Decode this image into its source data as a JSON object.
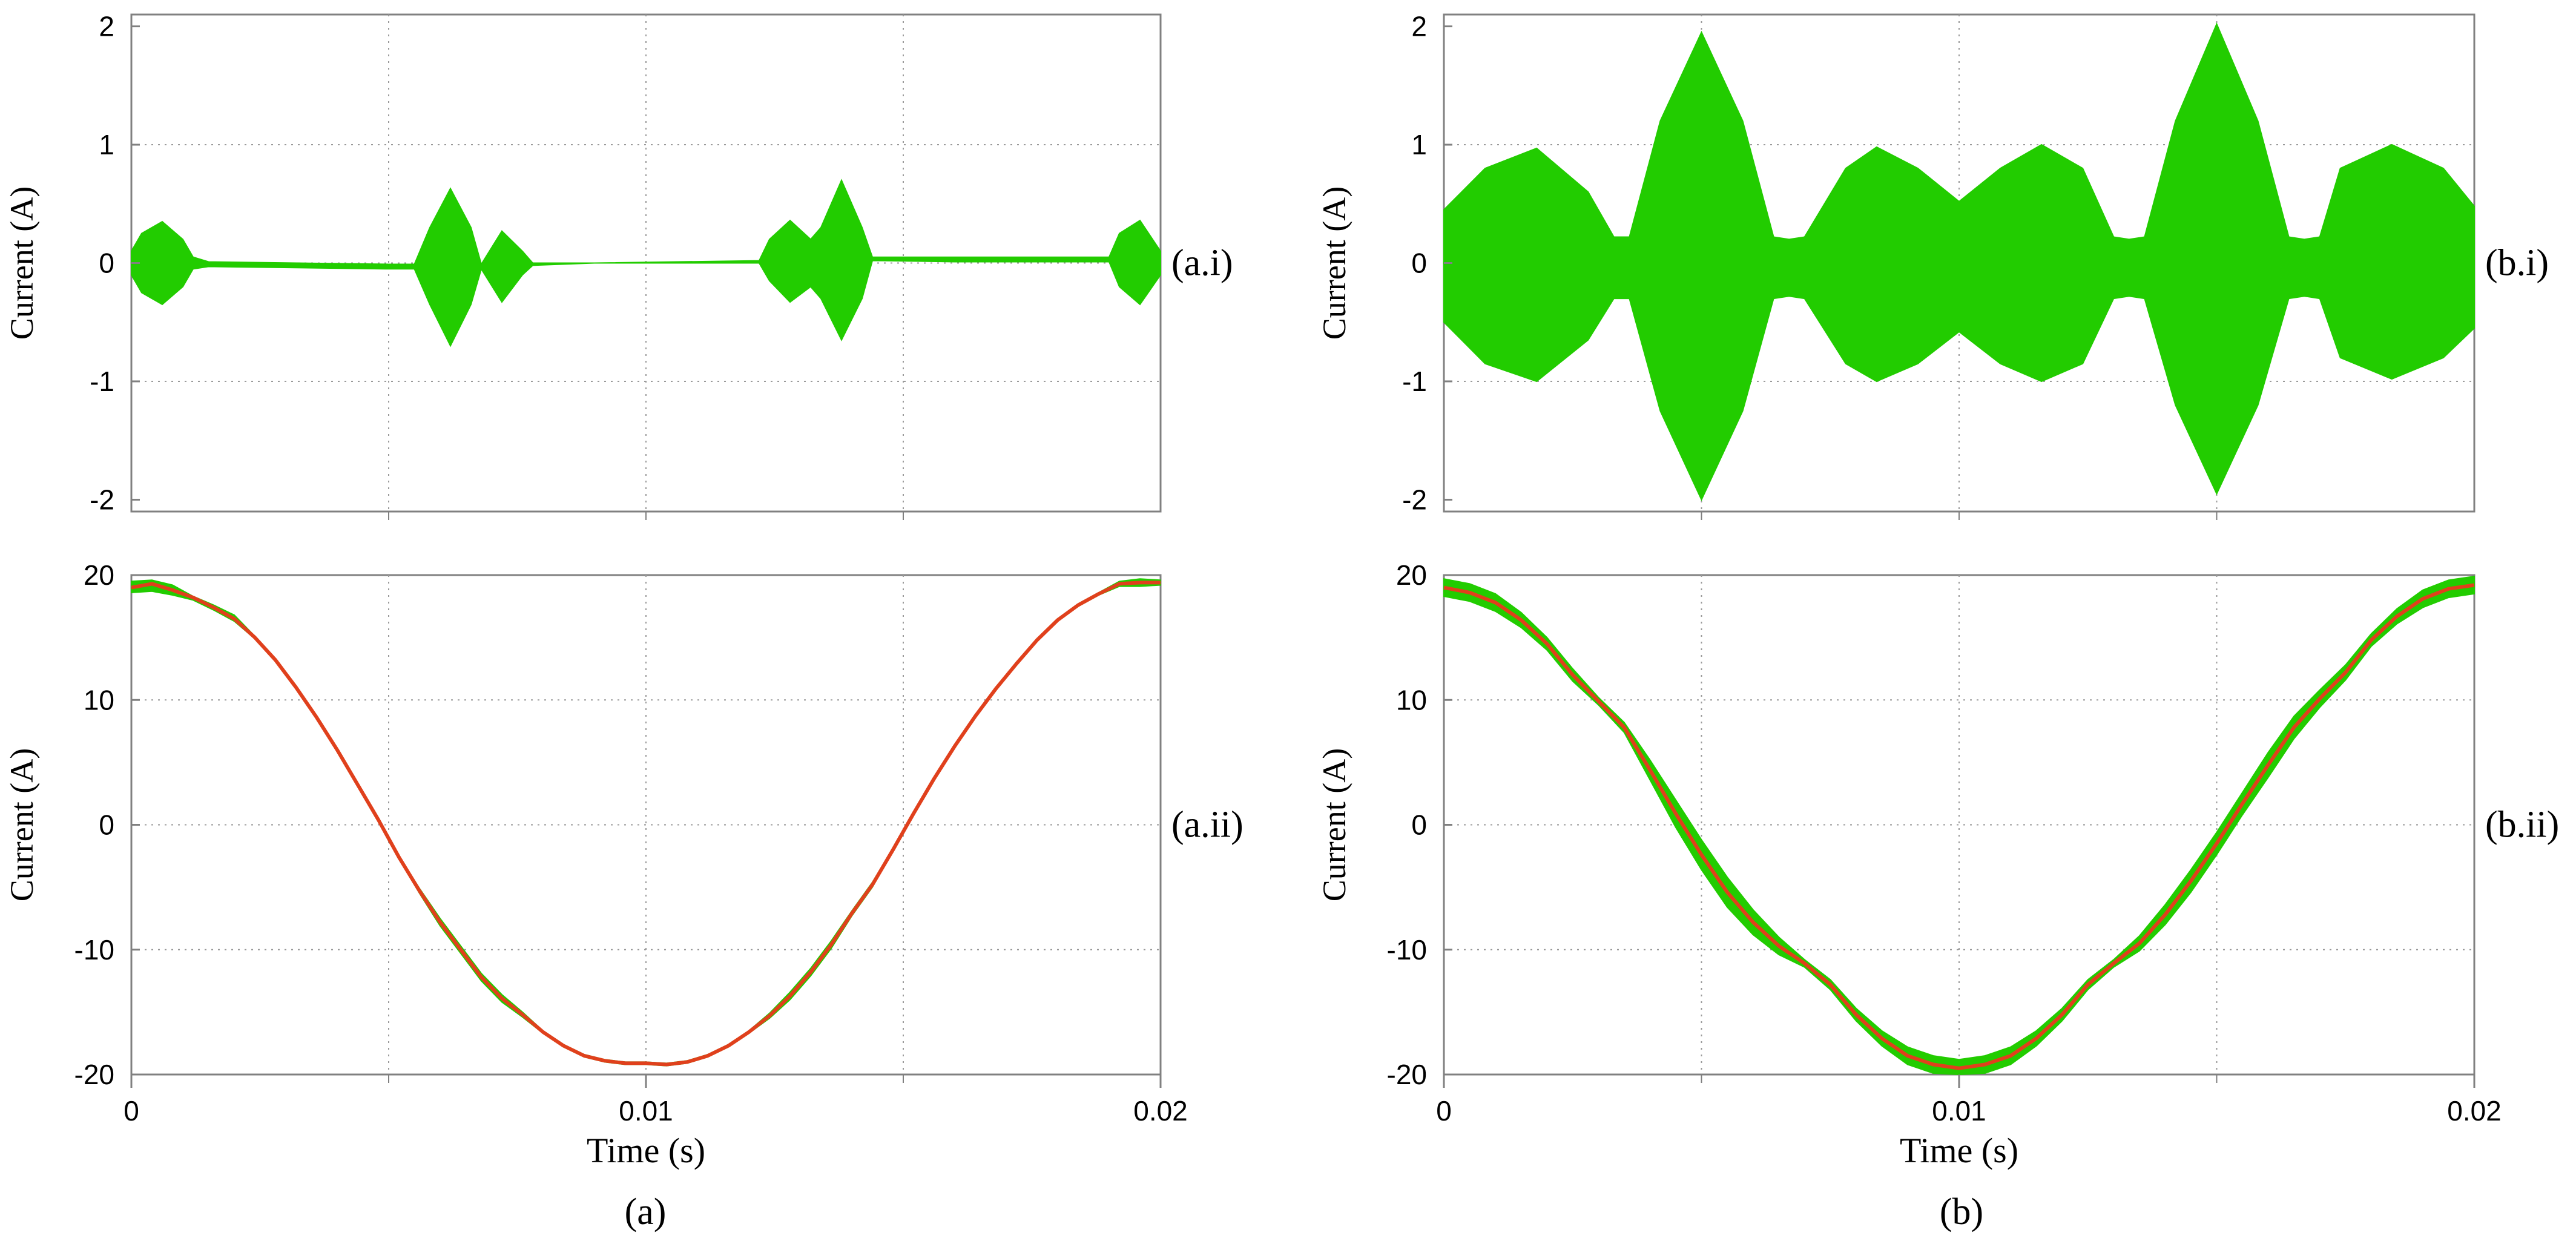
{
  "colors": {
    "ripple": "#22cc00",
    "fundamental": "#e0401c",
    "grid": "#9a9a9a",
    "axis": "#808080"
  },
  "captions": [
    "(a)",
    "(b)"
  ],
  "chart_data": [
    {
      "id": "a-i",
      "type": "area",
      "panel_label": "(a.i)",
      "ylabel": "Current (A)",
      "xlabel": "",
      "xlim": [
        0,
        0.02
      ],
      "ylim": [
        -2.1,
        2.1
      ],
      "xticks": [],
      "yticks": [
        "2",
        "1",
        "0",
        "-1",
        "-2"
      ],
      "ytick_values": [
        2,
        1,
        0,
        -1,
        -2
      ],
      "xgrid": [
        0.005,
        0.01,
        0.015
      ],
      "ygrid": [
        1,
        0,
        -1
      ],
      "series": [
        {
          "kind": "band",
          "color": "ripple",
          "x": [
            0,
            0.0002,
            0.0006,
            0.001,
            0.0012,
            0.0015,
            0.005,
            0.0055,
            0.0058,
            0.0062,
            0.0066,
            0.0068,
            0.0072,
            0.0076,
            0.0078,
            0.009,
            0.0122,
            0.0124,
            0.0128,
            0.0132,
            0.0134,
            0.0138,
            0.0142,
            0.0144,
            0.0146,
            0.016,
            0.019,
            0.0192,
            0.0196,
            0.02
          ],
          "upper": [
            0.1,
            0.25,
            0.35,
            0.2,
            0.05,
            0.01,
            -0.01,
            -0.01,
            0.3,
            0.63,
            0.3,
            -0.01,
            0.27,
            0.1,
            0.0,
            0.0,
            0.02,
            0.2,
            0.36,
            0.2,
            0.3,
            0.7,
            0.3,
            0.05,
            0.05,
            0.05,
            0.05,
            0.25,
            0.36,
            0.1
          ],
          "lower": [
            -0.1,
            -0.25,
            -0.35,
            -0.2,
            -0.05,
            -0.03,
            -0.05,
            -0.05,
            -0.35,
            -0.7,
            -0.35,
            -0.05,
            -0.33,
            -0.1,
            -0.02,
            0.0,
            0.0,
            -0.15,
            -0.33,
            -0.2,
            -0.3,
            -0.65,
            -0.3,
            0.02,
            0.02,
            0.01,
            0.01,
            -0.2,
            -0.35,
            -0.1
          ]
        }
      ]
    },
    {
      "id": "b-i",
      "type": "area",
      "panel_label": "(b.i)",
      "ylabel": "Current (A)",
      "xlabel": "",
      "xlim": [
        0,
        0.02
      ],
      "ylim": [
        -2.1,
        2.1
      ],
      "xticks": [],
      "yticks": [
        "2",
        "1",
        "0",
        "-1",
        "-2"
      ],
      "ytick_values": [
        2,
        1,
        0,
        -1,
        -2
      ],
      "xgrid": [
        0.005,
        0.01,
        0.015
      ],
      "ygrid": [
        1,
        0,
        -1
      ],
      "series": [
        {
          "kind": "band",
          "color": "ripple",
          "x": [
            0,
            0.0008,
            0.0018,
            0.0028,
            0.0033,
            0.0036,
            0.0042,
            0.005,
            0.0058,
            0.0064,
            0.0067,
            0.007,
            0.0078,
            0.0084,
            0.0092,
            0.01,
            0.0108,
            0.0116,
            0.0124,
            0.013,
            0.0133,
            0.0136,
            0.0142,
            0.015,
            0.0158,
            0.0164,
            0.0167,
            0.017,
            0.0174,
            0.0184,
            0.0194,
            0.02
          ],
          "upper": [
            0.45,
            0.8,
            0.97,
            0.6,
            0.22,
            0.22,
            1.2,
            1.95,
            1.2,
            0.22,
            0.2,
            0.22,
            0.8,
            0.98,
            0.8,
            0.52,
            0.8,
            1.0,
            0.8,
            0.22,
            0.2,
            0.22,
            1.2,
            2.02,
            1.2,
            0.22,
            0.2,
            0.22,
            0.8,
            1.0,
            0.8,
            0.48
          ],
          "lower": [
            -0.5,
            -0.85,
            -1.0,
            -0.65,
            -0.3,
            -0.3,
            -1.25,
            -2.0,
            -1.25,
            -0.3,
            -0.28,
            -0.3,
            -0.85,
            -1.0,
            -0.85,
            -0.58,
            -0.85,
            -1.0,
            -0.85,
            -0.3,
            -0.28,
            -0.3,
            -1.2,
            -1.95,
            -1.2,
            -0.3,
            -0.28,
            -0.3,
            -0.8,
            -0.98,
            -0.8,
            -0.55
          ]
        }
      ]
    },
    {
      "id": "a-ii",
      "type": "line",
      "panel_label": "(a.ii)",
      "ylabel": "Current (A)",
      "xlabel": "Time (s)",
      "xlim": [
        0,
        0.02
      ],
      "ylim": [
        -20,
        20
      ],
      "xticks": [
        "0",
        "0.01",
        "0.02"
      ],
      "xtick_values": [
        0,
        0.01,
        0.02
      ],
      "yticks": [
        "20",
        "10",
        "0",
        "-10",
        "-20"
      ],
      "ytick_values": [
        20,
        10,
        0,
        -10,
        -20
      ],
      "xgrid": [
        0.005,
        0.01,
        0.015
      ],
      "ygrid": [
        10,
        0,
        -10
      ],
      "series": [
        {
          "kind": "band",
          "color": "ripple",
          "x": [
            0,
            0.0004,
            0.0008,
            0.0012,
            0.0016,
            0.002,
            0.0024,
            0.0028,
            0.0032,
            0.0036,
            0.004,
            0.0044,
            0.0048,
            0.0052,
            0.0056,
            0.006,
            0.0064,
            0.0068,
            0.0072,
            0.0076,
            0.008,
            0.0084,
            0.0088,
            0.0092,
            0.0096,
            0.01,
            0.0104,
            0.0108,
            0.0112,
            0.0116,
            0.012,
            0.0124,
            0.0128,
            0.0132,
            0.0136,
            0.014,
            0.0144,
            0.0148,
            0.0152,
            0.0156,
            0.016,
            0.0164,
            0.0168,
            0.0172,
            0.0176,
            0.018,
            0.0184,
            0.0188,
            0.0192,
            0.0196,
            0.02
          ],
          "upper": [
            19.5,
            19.6,
            19.2,
            18.3,
            17.6,
            16.8,
            15.1,
            13.3,
            11.1,
            8.7,
            6.1,
            3.3,
            0.5,
            -2.5,
            -5.1,
            -7.5,
            -9.7,
            -11.9,
            -13.6,
            -15.0,
            -16.5,
            -17.6,
            -18.4,
            -18.8,
            -19.0,
            -19.0,
            -19.1,
            -18.9,
            -18.4,
            -17.6,
            -16.5,
            -15.1,
            -13.4,
            -11.5,
            -9.3,
            -6.9,
            -4.6,
            -1.9,
            1.0,
            3.8,
            6.4,
            8.8,
            11.0,
            13.0,
            14.9,
            16.5,
            17.7,
            18.6,
            19.5,
            19.7,
            19.6
          ],
          "lower": [
            18.6,
            18.7,
            18.4,
            18.0,
            17.2,
            16.3,
            14.9,
            13.1,
            10.9,
            8.5,
            5.9,
            3.1,
            0.3,
            -2.7,
            -5.5,
            -8.1,
            -10.3,
            -12.5,
            -14.2,
            -15.4,
            -16.7,
            -17.8,
            -18.6,
            -19.0,
            -19.2,
            -19.2,
            -19.3,
            -19.1,
            -18.6,
            -17.8,
            -16.7,
            -15.5,
            -14.0,
            -12.1,
            -9.9,
            -7.3,
            -5.0,
            -2.1,
            0.8,
            3.6,
            6.2,
            8.6,
            10.8,
            12.8,
            14.7,
            16.3,
            17.5,
            18.4,
            19.1,
            19.1,
            19.2
          ]
        },
        {
          "kind": "line",
          "color": "fundamental",
          "x": [
            0,
            0.0004,
            0.0008,
            0.0012,
            0.0016,
            0.002,
            0.0024,
            0.0028,
            0.0032,
            0.0036,
            0.004,
            0.0044,
            0.0048,
            0.0052,
            0.0056,
            0.006,
            0.0064,
            0.0068,
            0.0072,
            0.0076,
            0.008,
            0.0084,
            0.0088,
            0.0092,
            0.0096,
            0.01,
            0.0104,
            0.0108,
            0.0112,
            0.0116,
            0.012,
            0.0124,
            0.0128,
            0.0132,
            0.0136,
            0.014,
            0.0144,
            0.0148,
            0.0152,
            0.0156,
            0.016,
            0.0164,
            0.0168,
            0.0172,
            0.0176,
            0.018,
            0.0184,
            0.0188,
            0.0192,
            0.0196,
            0.02
          ],
          "y": [
            19.0,
            19.3,
            18.8,
            18.2,
            17.4,
            16.5,
            15.0,
            13.2,
            11.0,
            8.6,
            6.0,
            3.2,
            0.4,
            -2.6,
            -5.3,
            -7.8,
            -10.0,
            -12.2,
            -13.9,
            -15.2,
            -16.6,
            -17.7,
            -18.5,
            -18.9,
            -19.1,
            -19.1,
            -19.2,
            -19.0,
            -18.5,
            -17.7,
            -16.6,
            -15.3,
            -13.7,
            -11.8,
            -9.6,
            -7.1,
            -4.8,
            -2.0,
            0.9,
            3.7,
            6.3,
            8.7,
            10.9,
            12.9,
            14.8,
            16.4,
            17.6,
            18.5,
            19.3,
            19.4,
            19.4
          ]
        }
      ]
    },
    {
      "id": "b-ii",
      "type": "line",
      "panel_label": "(b.ii)",
      "ylabel": "Current (A)",
      "xlabel": "Time (s)",
      "xlim": [
        0,
        0.02
      ],
      "ylim": [
        -20,
        20
      ],
      "xticks": [
        "0",
        "0.01",
        "0.02"
      ],
      "xtick_values": [
        0,
        0.01,
        0.02
      ],
      "yticks": [
        "20",
        "10",
        "0",
        "-10",
        "-20"
      ],
      "ytick_values": [
        20,
        10,
        0,
        -10,
        -20
      ],
      "xgrid": [
        0.005,
        0.01,
        0.015
      ],
      "ygrid": [
        10,
        0,
        -10
      ],
      "series": [
        {
          "kind": "band",
          "color": "ripple",
          "x": [
            0,
            0.0005,
            0.001,
            0.0015,
            0.002,
            0.0025,
            0.003,
            0.0035,
            0.004,
            0.0045,
            0.005,
            0.0055,
            0.006,
            0.0065,
            0.007,
            0.0075,
            0.008,
            0.0085,
            0.009,
            0.0095,
            0.01,
            0.0105,
            0.011,
            0.0115,
            0.012,
            0.0125,
            0.013,
            0.0135,
            0.014,
            0.0145,
            0.015,
            0.0155,
            0.016,
            0.0165,
            0.017,
            0.0175,
            0.018,
            0.0185,
            0.019,
            0.0195,
            0.02
          ],
          "upper": [
            19.7,
            19.3,
            18.5,
            17.0,
            15.0,
            12.5,
            10.2,
            8.2,
            5.2,
            2.0,
            -1.2,
            -4.2,
            -6.8,
            -9.0,
            -10.8,
            -12.4,
            -14.7,
            -16.5,
            -17.8,
            -18.5,
            -18.8,
            -18.5,
            -17.8,
            -16.5,
            -14.7,
            -12.4,
            -10.8,
            -8.9,
            -6.4,
            -3.6,
            -0.6,
            2.6,
            5.8,
            8.7,
            10.8,
            12.8,
            15.3,
            17.3,
            18.8,
            19.6,
            19.9
          ],
          "lower": [
            18.3,
            17.9,
            17.1,
            15.8,
            14.0,
            11.5,
            9.6,
            7.4,
            3.6,
            -0.2,
            -3.6,
            -6.6,
            -8.8,
            -10.4,
            -11.4,
            -13.2,
            -15.7,
            -17.7,
            -19.2,
            -19.9,
            -20.2,
            -19.9,
            -19.2,
            -17.7,
            -15.7,
            -13.2,
            -11.4,
            -10.1,
            -8.0,
            -5.4,
            -2.4,
            0.8,
            3.8,
            6.9,
            9.4,
            11.6,
            14.3,
            16.1,
            17.4,
            18.2,
            18.5
          ]
        },
        {
          "kind": "line",
          "color": "fundamental",
          "x": [
            0,
            0.0005,
            0.001,
            0.0015,
            0.002,
            0.0025,
            0.003,
            0.0035,
            0.004,
            0.0045,
            0.005,
            0.0055,
            0.006,
            0.0065,
            0.007,
            0.0075,
            0.008,
            0.0085,
            0.009,
            0.0095,
            0.01,
            0.0105,
            0.011,
            0.0115,
            0.012,
            0.0125,
            0.013,
            0.0135,
            0.014,
            0.0145,
            0.015,
            0.0155,
            0.016,
            0.0165,
            0.017,
            0.0175,
            0.018,
            0.0185,
            0.019,
            0.0195,
            0.02
          ],
          "y": [
            19.0,
            18.6,
            17.8,
            16.4,
            14.5,
            12.0,
            9.9,
            7.8,
            4.4,
            0.9,
            -2.4,
            -5.4,
            -7.8,
            -9.7,
            -11.1,
            -12.8,
            -15.2,
            -17.1,
            -18.5,
            -19.2,
            -19.5,
            -19.2,
            -18.5,
            -17.1,
            -15.2,
            -12.8,
            -11.1,
            -9.5,
            -7.2,
            -4.5,
            -1.5,
            1.7,
            4.8,
            7.8,
            10.1,
            12.2,
            14.8,
            16.7,
            18.1,
            18.9,
            19.2
          ]
        }
      ]
    }
  ]
}
